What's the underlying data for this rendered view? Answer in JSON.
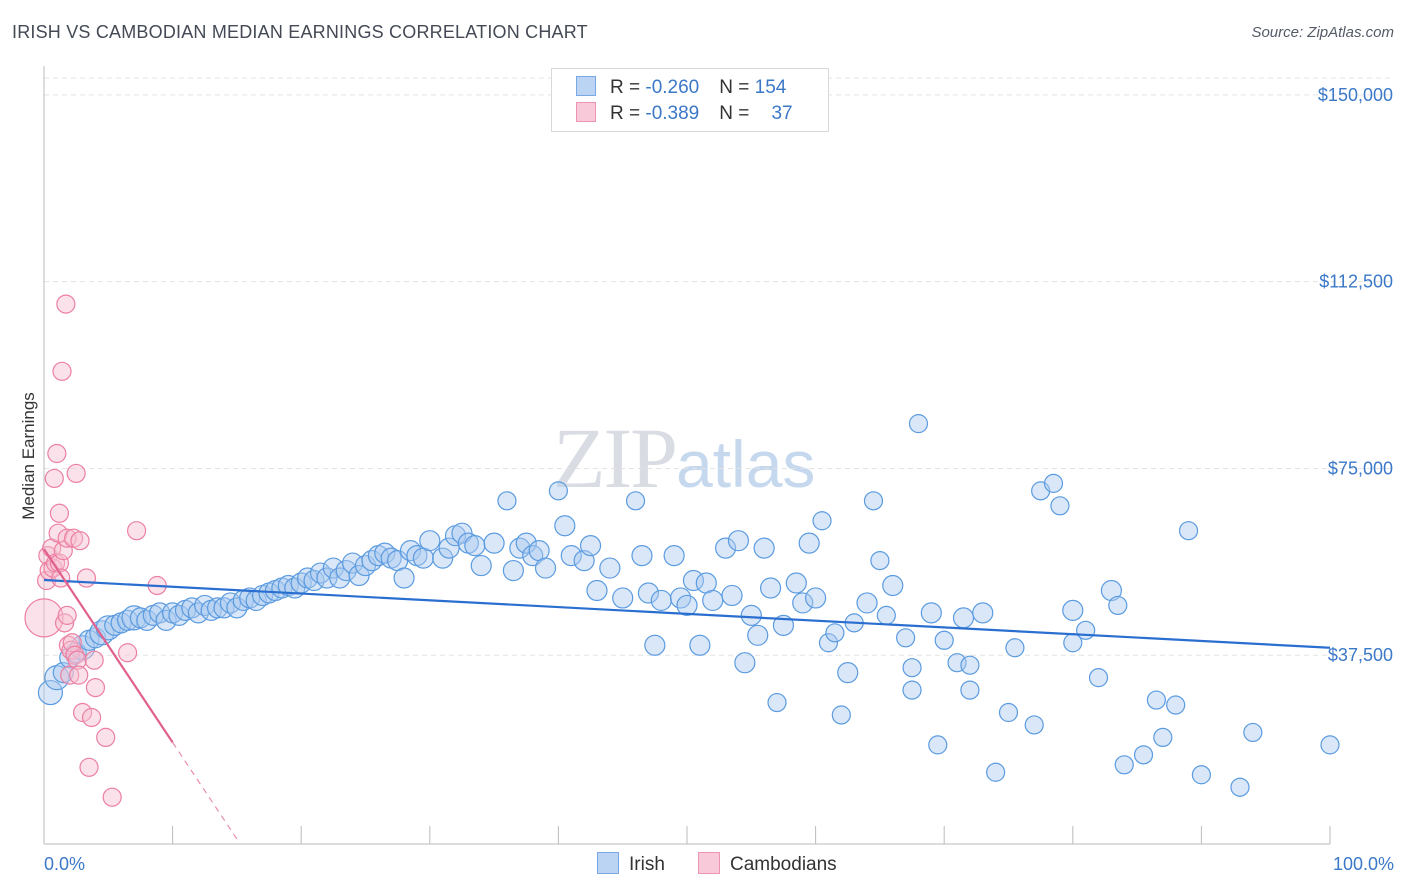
{
  "title": "IRISH VS CAMBODIAN MEDIAN EARNINGS CORRELATION CHART",
  "source": "Source: ZipAtlas.com",
  "watermark": {
    "zip": "ZIP",
    "atlas": "atlas"
  },
  "colors": {
    "irish": "#5b9be0",
    "irish_fill": "#aac9f0",
    "irish_line": "#2a6fd0",
    "cambodian": "#ec7fa2",
    "cambodian_fill": "#f6bfd1",
    "cambodian_line": "#e0608e",
    "axis_text": "#3b78c8",
    "grid": "#e3e3e3"
  },
  "legend": {
    "rows": [
      {
        "r_label": "R = ",
        "r_value": "-0.260",
        "n_label": "N = ",
        "n_value": "154"
      },
      {
        "r_label": "R = ",
        "r_value": "-0.389",
        "n_label": "N = ",
        "n_value": "37"
      }
    ],
    "series": [
      "Irish",
      "Cambodians"
    ]
  },
  "chart_data": {
    "type": "scatter",
    "title": "IRISH VS CAMBODIAN MEDIAN EARNINGS CORRELATION CHART",
    "xlabel": "",
    "ylabel": "Median Earnings",
    "xlim": [
      0,
      100
    ],
    "ylim": [
      0,
      155000
    ],
    "x_tick_labels": [
      "0.0%",
      "100.0%"
    ],
    "y_ticks": [
      37500,
      75000,
      112500,
      150000
    ],
    "y_tick_labels": [
      "$37,500",
      "$75,000",
      "$112,500",
      "$150,000"
    ],
    "series": [
      {
        "name": "Irish",
        "trend": {
          "x": [
            0,
            100
          ],
          "y": [
            52600,
            39000
          ]
        },
        "points": [
          [
            0.5,
            30000,
            3
          ],
          [
            1,
            33000,
            3
          ],
          [
            1.5,
            34000,
            2
          ],
          [
            2,
            37000,
            2
          ],
          [
            2.5,
            38000,
            2
          ],
          [
            3,
            39000,
            3
          ],
          [
            3.5,
            40500,
            2
          ],
          [
            4,
            41000,
            2
          ],
          [
            4.5,
            42000,
            3
          ],
          [
            5,
            43000,
            3
          ],
          [
            5.5,
            43500,
            2
          ],
          [
            6,
            44000,
            2
          ],
          [
            6.5,
            44500,
            2
          ],
          [
            7,
            45000,
            3
          ],
          [
            7.5,
            45000,
            2
          ],
          [
            8,
            44500,
            2
          ],
          [
            8.5,
            45500,
            2
          ],
          [
            9,
            46000,
            2
          ],
          [
            9.5,
            44500,
            2
          ],
          [
            10,
            46000,
            2
          ],
          [
            10.5,
            45500,
            2
          ],
          [
            11,
            46500,
            2
          ],
          [
            11.5,
            47000,
            2
          ],
          [
            12,
            46000,
            2
          ],
          [
            12.5,
            47500,
            2
          ],
          [
            13,
            46500,
            2
          ],
          [
            13.5,
            47000,
            2
          ],
          [
            14,
            47000,
            2
          ],
          [
            14.5,
            48000,
            2
          ],
          [
            15,
            47000,
            2
          ],
          [
            15.5,
            48500,
            2
          ],
          [
            16,
            49000,
            2
          ],
          [
            16.5,
            48500,
            2
          ],
          [
            17,
            49500,
            2
          ],
          [
            17.5,
            50000,
            2
          ],
          [
            18,
            50500,
            2
          ],
          [
            18.5,
            51000,
            2
          ],
          [
            19,
            51500,
            2
          ],
          [
            19.5,
            51000,
            2
          ],
          [
            20,
            52000,
            2
          ],
          [
            20.5,
            53000,
            2
          ],
          [
            21,
            52500,
            2
          ],
          [
            21.5,
            54000,
            2
          ],
          [
            22,
            53000,
            2
          ],
          [
            22.5,
            55000,
            2
          ],
          [
            23,
            53000,
            2
          ],
          [
            23.5,
            54500,
            2
          ],
          [
            24,
            56000,
            2
          ],
          [
            24.5,
            53500,
            2
          ],
          [
            25,
            55500,
            2
          ],
          [
            25.5,
            56500,
            2
          ],
          [
            26,
            57500,
            2
          ],
          [
            26.5,
            58000,
            2
          ],
          [
            27,
            57000,
            2
          ],
          [
            27.5,
            56500,
            2
          ],
          [
            28,
            53000,
            2
          ],
          [
            28.5,
            58500,
            2
          ],
          [
            29,
            57500,
            2
          ],
          [
            29.5,
            57000,
            2
          ],
          [
            30,
            60500,
            2
          ],
          [
            31,
            57000,
            2
          ],
          [
            31.5,
            59000,
            2
          ],
          [
            32,
            61500,
            2
          ],
          [
            32.5,
            62000,
            2
          ],
          [
            33,
            60000,
            2
          ],
          [
            33.5,
            59500,
            2
          ],
          [
            34,
            55500,
            2
          ],
          [
            35,
            60000,
            2
          ],
          [
            36,
            68500,
            1
          ],
          [
            36.5,
            54500,
            2
          ],
          [
            37,
            59000,
            2
          ],
          [
            37.5,
            60000,
            2
          ],
          [
            38,
            57500,
            2
          ],
          [
            38.5,
            58500,
            2
          ],
          [
            39,
            55000,
            2
          ],
          [
            40,
            70500,
            1
          ],
          [
            40.5,
            63500,
            2
          ],
          [
            41,
            57500,
            2
          ],
          [
            42,
            56500,
            2
          ],
          [
            42.5,
            59500,
            2
          ],
          [
            43,
            50500,
            2
          ],
          [
            44,
            55000,
            2
          ],
          [
            45,
            49000,
            2
          ],
          [
            46,
            68500,
            1
          ],
          [
            46.5,
            57500,
            2
          ],
          [
            47,
            50000,
            2
          ],
          [
            47.5,
            39500,
            2
          ],
          [
            48,
            48500,
            2
          ],
          [
            49,
            57500,
            2
          ],
          [
            49.5,
            49000,
            2
          ],
          [
            50,
            47500,
            2
          ],
          [
            50.5,
            52500,
            2
          ],
          [
            51,
            39500,
            2
          ],
          [
            51.5,
            52000,
            2
          ],
          [
            52,
            48500,
            2
          ],
          [
            53,
            59000,
            2
          ],
          [
            53.5,
            49500,
            2
          ],
          [
            54,
            60500,
            2
          ],
          [
            54.5,
            36000,
            2
          ],
          [
            55,
            45500,
            2
          ],
          [
            55.5,
            41500,
            2
          ],
          [
            56,
            59000,
            2
          ],
          [
            56.5,
            51000,
            2
          ],
          [
            57,
            28000,
            1
          ],
          [
            57.5,
            43500,
            2
          ],
          [
            58.5,
            52000,
            2
          ],
          [
            59,
            48000,
            2
          ],
          [
            59.5,
            60000,
            2
          ],
          [
            60,
            49000,
            2
          ],
          [
            60.5,
            64500,
            1
          ],
          [
            61,
            40000,
            1
          ],
          [
            61.5,
            42000,
            1
          ],
          [
            62,
            25500,
            1
          ],
          [
            62.5,
            34000,
            2
          ],
          [
            63,
            44000,
            1
          ],
          [
            64,
            48000,
            2
          ],
          [
            64.5,
            68500,
            1
          ],
          [
            65,
            56500,
            1
          ],
          [
            65.5,
            45500,
            1
          ],
          [
            66,
            51500,
            2
          ],
          [
            67,
            41000,
            1
          ],
          [
            67.5,
            30500,
            1
          ],
          [
            67.5,
            35000,
            1
          ],
          [
            68,
            84000,
            1
          ],
          [
            69,
            46000,
            2
          ],
          [
            69.5,
            19500,
            1
          ],
          [
            70,
            40500,
            1
          ],
          [
            71,
            36000,
            1
          ],
          [
            71.5,
            45000,
            2
          ],
          [
            72,
            30500,
            1
          ],
          [
            72,
            35500,
            1
          ],
          [
            73,
            46000,
            2
          ],
          [
            74,
            14000,
            1
          ],
          [
            75,
            26000,
            1
          ],
          [
            75.5,
            39000,
            1
          ],
          [
            77,
            23500,
            1
          ],
          [
            77.5,
            70500,
            1
          ],
          [
            78.5,
            72000,
            1
          ],
          [
            79,
            67500,
            1
          ],
          [
            80,
            46500,
            2
          ],
          [
            80,
            40000,
            1
          ],
          [
            81,
            42500,
            1
          ],
          [
            82,
            33000,
            1
          ],
          [
            83,
            50500,
            2
          ],
          [
            83.5,
            47500,
            1
          ],
          [
            84,
            15500,
            1
          ],
          [
            85.5,
            17500,
            1
          ],
          [
            86.5,
            28500,
            1
          ],
          [
            87,
            21000,
            1
          ],
          [
            88,
            27500,
            1
          ],
          [
            89,
            62500,
            1
          ],
          [
            90,
            13500,
            1
          ],
          [
            93,
            11000,
            1
          ],
          [
            94,
            22000,
            1
          ],
          [
            100,
            19500,
            1
          ]
        ]
      },
      {
        "name": "Cambodians",
        "trend": {
          "x": [
            0,
            10
          ],
          "y": [
            58800,
            20000
          ]
        },
        "trend_dashed": {
          "x": [
            10,
            15
          ],
          "y": [
            20000,
            600
          ]
        },
        "points": [
          [
            0,
            45000,
            4
          ],
          [
            0.2,
            52500,
            1
          ],
          [
            0.3,
            57500,
            1
          ],
          [
            0.4,
            54500,
            1
          ],
          [
            0.6,
            59000,
            1
          ],
          [
            0.7,
            55000,
            1
          ],
          [
            0.8,
            73000,
            1
          ],
          [
            0.9,
            56000,
            1
          ],
          [
            1,
            78000,
            1
          ],
          [
            1.1,
            62000,
            1
          ],
          [
            1.2,
            66000,
            1
          ],
          [
            1.2,
            56000,
            1
          ],
          [
            1.3,
            53000,
            1
          ],
          [
            1.4,
            94500,
            1
          ],
          [
            1.5,
            58500,
            1
          ],
          [
            1.6,
            44000,
            1
          ],
          [
            1.7,
            108000,
            1
          ],
          [
            1.8,
            61000,
            1
          ],
          [
            1.8,
            45500,
            1
          ],
          [
            1.9,
            39500,
            1
          ],
          [
            2,
            33500,
            1
          ],
          [
            2.1,
            38500,
            1
          ],
          [
            2.2,
            40000,
            1
          ],
          [
            2.3,
            61000,
            1
          ],
          [
            2.4,
            37500,
            1
          ],
          [
            2.5,
            74000,
            1
          ],
          [
            2.6,
            36500,
            1
          ],
          [
            2.7,
            33500,
            1
          ],
          [
            2.8,
            60500,
            1
          ],
          [
            3,
            26000,
            1
          ],
          [
            3.3,
            53000,
            1
          ],
          [
            3.5,
            15000,
            1
          ],
          [
            3.7,
            25000,
            1
          ],
          [
            3.9,
            36500,
            1
          ],
          [
            4,
            31000,
            1
          ],
          [
            4.8,
            21000,
            1
          ],
          [
            5.3,
            9000,
            1
          ],
          [
            6.5,
            38000,
            1
          ],
          [
            7.2,
            62500,
            1
          ],
          [
            8.8,
            51500,
            1
          ]
        ]
      }
    ]
  }
}
